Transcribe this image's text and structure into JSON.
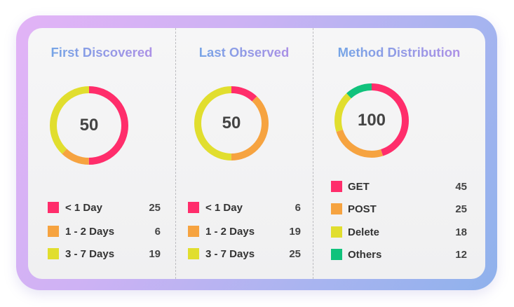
{
  "colors": {
    "red": "#ff2d6b",
    "orange": "#f6a340",
    "yellow": "#e1de2e",
    "green": "#10c27c"
  },
  "panels": [
    {
      "title": "First Discovered",
      "center_value": "50",
      "items": [
        {
          "label": "< 1 Day",
          "count": "25",
          "color": "#ff2d6b",
          "value": 25
        },
        {
          "label": "1 - 2 Days",
          "count": "6",
          "color": "#f6a340",
          "value": 6
        },
        {
          "label": "3 - 7 Days",
          "count": "19",
          "color": "#e1de2e",
          "value": 19
        }
      ]
    },
    {
      "title": "Last Observed",
      "center_value": "50",
      "items": [
        {
          "label": "< 1 Day",
          "count": "6",
          "color": "#ff2d6b",
          "value": 6
        },
        {
          "label": "1 - 2 Days",
          "count": "19",
          "color": "#f6a340",
          "value": 19
        },
        {
          "label": "3 - 7 Days",
          "count": "25",
          "color": "#e1de2e",
          "value": 25
        }
      ]
    },
    {
      "title": "Method Distribution",
      "center_value": "100",
      "items": [
        {
          "label": "GET",
          "count": "45",
          "color": "#ff2d6b",
          "value": 45
        },
        {
          "label": "POST",
          "count": "25",
          "color": "#f6a340",
          "value": 25
        },
        {
          "label": "Delete",
          "count": "18",
          "color": "#e1de2e",
          "value": 18
        },
        {
          "label": "Others",
          "count": "12",
          "color": "#10c27c",
          "value": 12
        }
      ]
    }
  ]
}
